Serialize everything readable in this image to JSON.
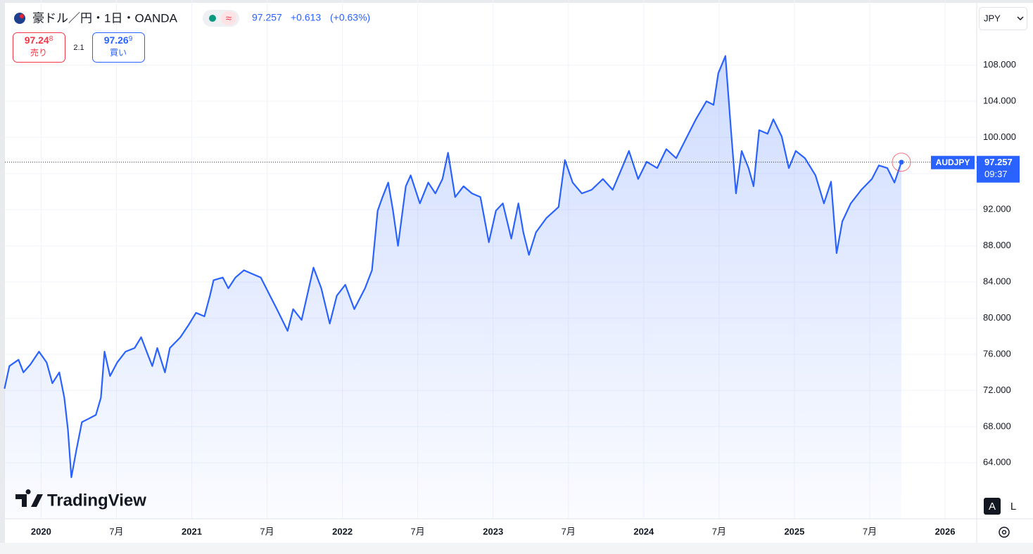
{
  "ui": {
    "symbol": "豪ドル／円・1日・OANDA",
    "price": "97.257",
    "change": "+0.613",
    "change_pct": "(+0.63%)",
    "sell": {
      "price": "97.24",
      "pip": "8",
      "label": "売り"
    },
    "spread": "2.1",
    "buy": {
      "price": "97.26",
      "pip": "9",
      "label": "買い"
    },
    "currency": "JPY",
    "ticker": "AUDJPY",
    "last_price": "97.257",
    "countdown": "09:37",
    "logo": "TradingView",
    "scale_auto": "A",
    "scale_log": "L"
  },
  "chart_data": {
    "type": "area",
    "color": "#2962ff",
    "grid": true,
    "x": [
      2019.757,
      2019.79,
      2019.85,
      2019.883,
      2019.93,
      2019.986,
      2020.037,
      2020.075,
      2020.121,
      2020.154,
      2020.178,
      2020.201,
      2020.234,
      2020.271,
      2020.318,
      2020.364,
      2020.397,
      2020.421,
      2020.458,
      2020.505,
      2020.561,
      2020.621,
      2020.664,
      2020.71,
      2020.738,
      2020.771,
      2020.822,
      2020.855,
      2020.925,
      2020.981,
      2021.028,
      2021.084,
      2021.121,
      2021.145,
      2021.206,
      2021.243,
      2021.29,
      2021.346,
      2021.402,
      2021.458,
      2021.519,
      2021.565,
      2021.636,
      2021.673,
      2021.729,
      2021.766,
      2021.808,
      2021.86,
      2021.916,
      2021.963,
      2022.019,
      2022.079,
      2022.15,
      2022.196,
      2022.234,
      2022.266,
      2022.304,
      2022.336,
      2022.369,
      2022.421,
      2022.453,
      2022.514,
      2022.57,
      2022.617,
      2022.664,
      2022.701,
      2022.748,
      2022.804,
      2022.86,
      2022.916,
      2022.972,
      2023.019,
      2023.065,
      2023.121,
      2023.168,
      2023.201,
      2023.238,
      2023.285,
      2023.355,
      2023.435,
      2023.477,
      2023.528,
      2023.589,
      2023.654,
      2023.729,
      2023.794,
      2023.855,
      2023.902,
      2023.963,
      2024.019,
      2024.089,
      2024.15,
      2024.215,
      2024.276,
      2024.346,
      2024.416,
      2024.463,
      2024.495,
      2024.542,
      2024.579,
      2024.612,
      2024.65,
      2024.696,
      2024.729,
      2024.766,
      2024.822,
      2024.86,
      2024.916,
      2024.963,
      2025.009,
      2025.07,
      2025.14,
      2025.196,
      2025.243,
      2025.28,
      2025.318,
      2025.374,
      2025.444,
      2025.514,
      2025.561,
      2025.617,
      2025.664,
      2025.71
    ],
    "values": [
      72.2,
      74.7,
      75.4,
      74.0,
      74.9,
      76.3,
      75.1,
      72.8,
      74.0,
      71.2,
      67.7,
      62.4,
      65.4,
      68.5,
      68.9,
      69.3,
      71.2,
      76.3,
      73.6,
      75.1,
      76.3,
      76.7,
      77.9,
      75.9,
      74.7,
      76.7,
      74.0,
      76.7,
      77.9,
      79.3,
      80.6,
      80.2,
      82.5,
      84.2,
      84.5,
      83.3,
      84.5,
      85.3,
      84.9,
      84.5,
      82.5,
      81.0,
      78.6,
      81.0,
      79.8,
      82.5,
      85.6,
      83.3,
      79.4,
      82.5,
      83.7,
      81.0,
      83.3,
      85.3,
      91.9,
      93.4,
      95.0,
      91.9,
      88.0,
      94.6,
      95.8,
      92.7,
      95.0,
      93.8,
      95.4,
      98.3,
      93.4,
      94.6,
      93.8,
      93.4,
      88.4,
      91.9,
      92.7,
      88.8,
      92.7,
      89.5,
      87.0,
      89.5,
      91.1,
      92.3,
      97.5,
      95.0,
      93.8,
      94.2,
      95.4,
      94.2,
      96.6,
      98.5,
      95.4,
      97.3,
      96.6,
      98.7,
      97.7,
      99.7,
      102.0,
      104.0,
      103.6,
      107.1,
      109.0,
      100.8,
      93.8,
      98.5,
      96.6,
      94.6,
      100.8,
      100.4,
      102.0,
      100.1,
      96.6,
      98.5,
      97.7,
      95.8,
      92.7,
      95.1,
      87.2,
      90.7,
      92.7,
      94.2,
      95.4,
      96.9,
      96.6,
      95.0,
      97.257
    ],
    "xlim": [
      2019.76,
      2026.21
    ],
    "xticks": [
      {
        "value": 2020,
        "label": "2020"
      },
      {
        "value": 2020.5,
        "label": "7月"
      },
      {
        "value": 2021,
        "label": "2021"
      },
      {
        "value": 2021.5,
        "label": "7月"
      },
      {
        "value": 2022,
        "label": "2022"
      },
      {
        "value": 2022.5,
        "label": "7月"
      },
      {
        "value": 2023,
        "label": "2023"
      },
      {
        "value": 2023.5,
        "label": "7月"
      },
      {
        "value": 2024,
        "label": "2024"
      },
      {
        "value": 2024.5,
        "label": "7月"
      },
      {
        "value": 2025,
        "label": "2025"
      },
      {
        "value": 2025.5,
        "label": "7月"
      },
      {
        "value": 2026,
        "label": "2026"
      }
    ],
    "ylim": [
      57.8,
      115.2
    ],
    "yticks": [
      {
        "value": 64,
        "label": "64.000"
      },
      {
        "value": 68,
        "label": "68.000"
      },
      {
        "value": 72,
        "label": "72.000"
      },
      {
        "value": 76,
        "label": "76.000"
      },
      {
        "value": 80,
        "label": "80.000"
      },
      {
        "value": 84,
        "label": "84.000"
      },
      {
        "value": 88,
        "label": "88.000"
      },
      {
        "value": 92,
        "label": "92.000"
      },
      {
        "value": 96,
        "label": "96.000"
      },
      {
        "value": 100,
        "label": "100.000"
      },
      {
        "value": 104,
        "label": "104.000"
      },
      {
        "value": 108,
        "label": "108.000"
      }
    ]
  }
}
